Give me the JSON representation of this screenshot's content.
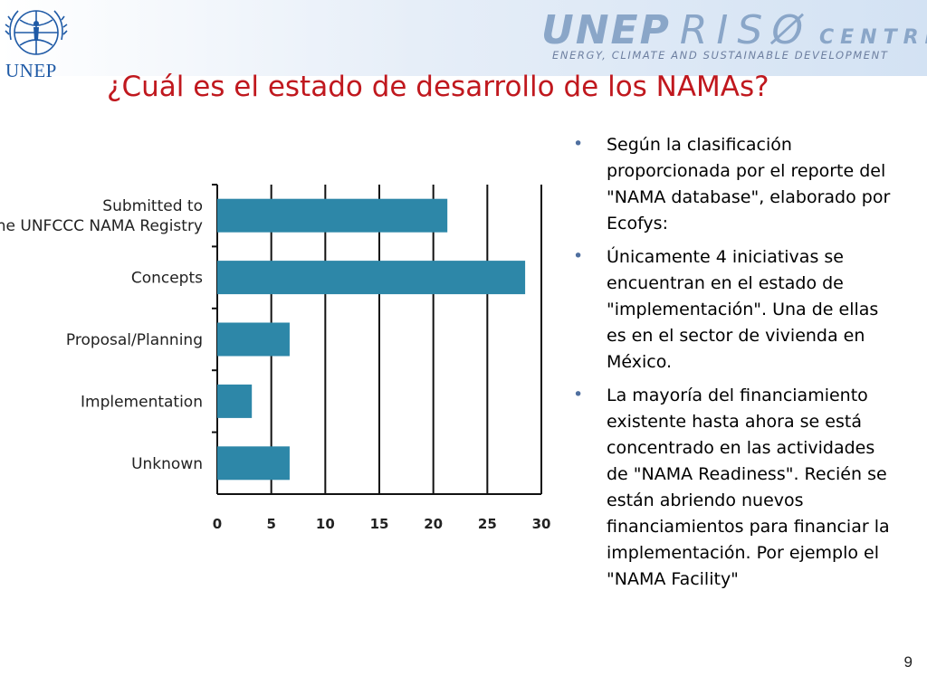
{
  "header": {
    "logo_text": "UNEP",
    "brand_word1": "UNEP",
    "brand_word2": "RISØ",
    "brand_word3": "CENTRE",
    "brand_tagline": "ENERGY, CLIMATE AND SUSTAINABLE DEVELOPMENT"
  },
  "title": "¿Cuál es el estado de desarrollo de los  NAMAs?",
  "chart_data": {
    "type": "bar",
    "orientation": "horizontal",
    "categories": [
      "Submitted to\nthe UNFCCC NAMA Registry",
      "Concepts",
      "Proposal/Planning",
      "Implementation",
      "Unknown"
    ],
    "values": [
      21.3,
      28.5,
      6.7,
      3.2,
      6.7
    ],
    "xlim": [
      0,
      30
    ],
    "xticks": [
      "0",
      "5",
      "10",
      "15",
      "20",
      "25",
      "30"
    ],
    "grid": true,
    "bar_color": "#2d87a8"
  },
  "bullets": [
    {
      "text": "Según la clasificación proporcionada por el reporte del \"NAMA database\", elaborado por Ecofys:"
    },
    {
      "text": "Únicamente 4 iniciativas se encuentran en el estado de \"implementación\". Una de ellas es en el sector de vivienda en México."
    },
    {
      "text": "La mayoría del financiamiento existente hasta ahora se está concentrado en las actividades de \"NAMA Readiness\".  Recién se están abriendo  nuevos financiamientos para financiar la implementación. Por ejemplo el \"NAMA Facility\""
    }
  ],
  "bullet_symbol": "•",
  "page_number": "9"
}
